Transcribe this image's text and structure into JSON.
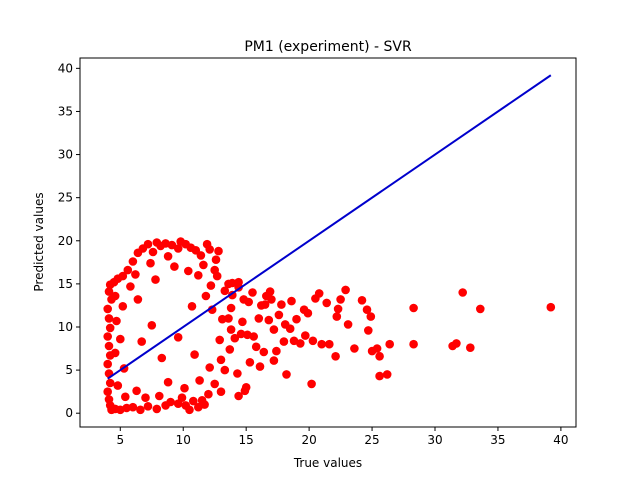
{
  "chart_data": {
    "type": "scatter",
    "title": "PM1 (experiment) - SVR",
    "xlabel": "True values",
    "ylabel": "Predicted values",
    "xlim": [
      1.8,
      41.2
    ],
    "ylim": [
      -1.6,
      41.2
    ],
    "xticks": [
      5,
      10,
      15,
      20,
      25,
      30,
      35,
      40
    ],
    "yticks": [
      0,
      5,
      10,
      15,
      20,
      25,
      30,
      35,
      40
    ],
    "grid": false,
    "legend": "none",
    "scatter_color": "#ff0000",
    "line_color": "#0000cc",
    "reference_line": {
      "x": [
        4.0,
        39.2
      ],
      "y": [
        4.0,
        39.2
      ]
    },
    "points": [
      [
        39.2,
        12.3
      ],
      [
        33.6,
        12.1
      ],
      [
        32.2,
        14.0
      ],
      [
        32.8,
        7.6
      ],
      [
        31.7,
        8.1
      ],
      [
        31.4,
        7.8
      ],
      [
        28.3,
        12.2
      ],
      [
        28.3,
        8.0
      ],
      [
        26.4,
        8.0
      ],
      [
        26.2,
        4.5
      ],
      [
        25.6,
        4.3
      ],
      [
        25.6,
        6.6
      ],
      [
        25.4,
        7.5
      ],
      [
        25.0,
        7.2
      ],
      [
        24.9,
        11.2
      ],
      [
        24.7,
        9.6
      ],
      [
        24.6,
        12.0
      ],
      [
        24.2,
        13.1
      ],
      [
        23.6,
        7.5
      ],
      [
        23.1,
        10.3
      ],
      [
        22.9,
        14.3
      ],
      [
        22.5,
        13.2
      ],
      [
        22.3,
        12.1
      ],
      [
        22.2,
        11.2
      ],
      [
        22.1,
        6.6
      ],
      [
        21.6,
        8.0
      ],
      [
        21.0,
        8.0
      ],
      [
        20.2,
        3.4
      ],
      [
        20.5,
        13.3
      ],
      [
        20.8,
        13.9
      ],
      [
        19.6,
        12.0
      ],
      [
        19.3,
        8.1
      ],
      [
        18.8,
        8.4
      ],
      [
        18.1,
        10.3
      ],
      [
        18.0,
        8.3
      ],
      [
        17.8,
        12.6
      ],
      [
        17.4,
        7.2
      ],
      [
        17.0,
        13.2
      ],
      [
        17.2,
        9.7
      ],
      [
        16.2,
        12.5
      ],
      [
        16.6,
        13.6
      ],
      [
        16.8,
        10.8
      ],
      [
        16.0,
        11.0
      ],
      [
        15.8,
        7.7
      ],
      [
        16.1,
        5.4
      ],
      [
        15.3,
        5.9
      ],
      [
        15.1,
        9.1
      ],
      [
        15.2,
        12.9
      ],
      [
        15.0,
        3.0
      ],
      [
        14.9,
        2.6
      ],
      [
        14.4,
        2.0
      ],
      [
        14.3,
        4.6
      ],
      [
        14.4,
        14.6
      ],
      [
        13.6,
        15.0
      ],
      [
        13.9,
        13.7
      ],
      [
        13.8,
        12.2
      ],
      [
        13.1,
        10.9
      ],
      [
        13.6,
        11.0
      ],
      [
        13.9,
        15.1
      ],
      [
        14.4,
        15.2
      ],
      [
        14.6,
        9.2
      ],
      [
        16.5,
        12.6
      ],
      [
        18.2,
        4.5
      ],
      [
        17.2,
        6.1
      ],
      [
        12.8,
        18.8
      ],
      [
        12.6,
        17.8
      ],
      [
        12.5,
        16.6
      ],
      [
        11.9,
        19.6
      ],
      [
        12.1,
        19.0
      ],
      [
        12.2,
        14.8
      ],
      [
        11.6,
        17.2
      ],
      [
        11.4,
        18.3
      ],
      [
        11.0,
        18.9
      ],
      [
        10.6,
        19.2
      ],
      [
        10.2,
        19.6
      ],
      [
        9.8,
        19.9
      ],
      [
        9.6,
        19.1
      ],
      [
        9.1,
        19.5
      ],
      [
        8.6,
        19.7
      ],
      [
        8.2,
        19.4
      ],
      [
        7.9,
        19.8
      ],
      [
        7.6,
        18.7
      ],
      [
        7.2,
        19.6
      ],
      [
        6.8,
        19.1
      ],
      [
        6.4,
        18.6
      ],
      [
        6.0,
        17.6
      ],
      [
        5.6,
        16.6
      ],
      [
        5.2,
        15.9
      ],
      [
        4.8,
        15.6
      ],
      [
        4.5,
        15.2
      ],
      [
        4.2,
        14.9
      ],
      [
        4.1,
        14.1
      ],
      [
        4.3,
        13.2
      ],
      [
        4.0,
        12.1
      ],
      [
        4.1,
        11.0
      ],
      [
        4.2,
        9.9
      ],
      [
        4.0,
        8.9
      ],
      [
        4.1,
        7.8
      ],
      [
        4.2,
        6.7
      ],
      [
        4.0,
        5.7
      ],
      [
        4.1,
        4.6
      ],
      [
        4.2,
        3.5
      ],
      [
        4.0,
        2.5
      ],
      [
        4.1,
        1.6
      ],
      [
        4.2,
        0.9
      ],
      [
        4.3,
        0.4
      ],
      [
        4.6,
        0.5
      ],
      [
        5.0,
        0.4
      ],
      [
        5.5,
        0.6
      ],
      [
        6.0,
        0.7
      ],
      [
        6.6,
        0.4
      ],
      [
        7.2,
        0.8
      ],
      [
        7.9,
        0.5
      ],
      [
        8.6,
        0.9
      ],
      [
        9.0,
        1.3
      ],
      [
        9.6,
        1.1
      ],
      [
        10.2,
        0.9
      ],
      [
        10.8,
        1.4
      ],
      [
        11.2,
        0.7
      ],
      [
        11.7,
        1.0
      ],
      [
        12.0,
        2.2
      ],
      [
        11.5,
        1.5
      ],
      [
        10.5,
        0.4
      ],
      [
        9.9,
        1.8
      ],
      [
        13.0,
        2.5
      ],
      [
        12.5,
        3.4
      ],
      [
        13.0,
        6.2
      ],
      [
        12.9,
        8.5
      ],
      [
        13.3,
        5.0
      ],
      [
        13.7,
        7.4
      ],
      [
        14.1,
        8.7
      ],
      [
        14.7,
        10.6
      ],
      [
        15.6,
        8.9
      ],
      [
        16.4,
        7.1
      ],
      [
        17.6,
        11.4
      ],
      [
        18.5,
        9.8
      ],
      [
        19.0,
        10.9
      ],
      [
        19.9,
        11.6
      ],
      [
        21.4,
        12.8
      ],
      [
        12.3,
        12.0
      ],
      [
        11.8,
        13.6
      ],
      [
        12.7,
        15.9
      ],
      [
        13.3,
        14.2
      ],
      [
        13.8,
        9.7
      ],
      [
        8.8,
        18.2
      ],
      [
        9.3,
        17.0
      ],
      [
        7.4,
        17.4
      ],
      [
        10.4,
        16.5
      ],
      [
        11.2,
        16.0
      ],
      [
        6.2,
        16.1
      ],
      [
        5.8,
        14.7
      ],
      [
        4.6,
        13.6
      ],
      [
        5.2,
        12.4
      ],
      [
        4.7,
        10.7
      ],
      [
        5.0,
        8.6
      ],
      [
        4.6,
        7.0
      ],
      [
        5.3,
        5.2
      ],
      [
        4.8,
        3.2
      ],
      [
        5.4,
        1.9
      ],
      [
        6.3,
        2.6
      ],
      [
        7.0,
        1.8
      ],
      [
        8.1,
        2.0
      ],
      [
        8.8,
        3.6
      ],
      [
        10.1,
        2.9
      ],
      [
        11.3,
        3.8
      ],
      [
        12.1,
        5.3
      ],
      [
        6.4,
        13.2
      ],
      [
        7.8,
        15.5
      ],
      [
        14.8,
        13.2
      ],
      [
        15.5,
        14.0
      ],
      [
        16.9,
        14.1
      ],
      [
        18.6,
        13.0
      ],
      [
        19.7,
        9.0
      ],
      [
        20.3,
        8.4
      ],
      [
        10.7,
        12.4
      ],
      [
        9.6,
        8.8
      ],
      [
        7.5,
        10.2
      ],
      [
        8.3,
        6.4
      ],
      [
        6.7,
        8.3
      ],
      [
        10.9,
        6.8
      ]
    ]
  }
}
